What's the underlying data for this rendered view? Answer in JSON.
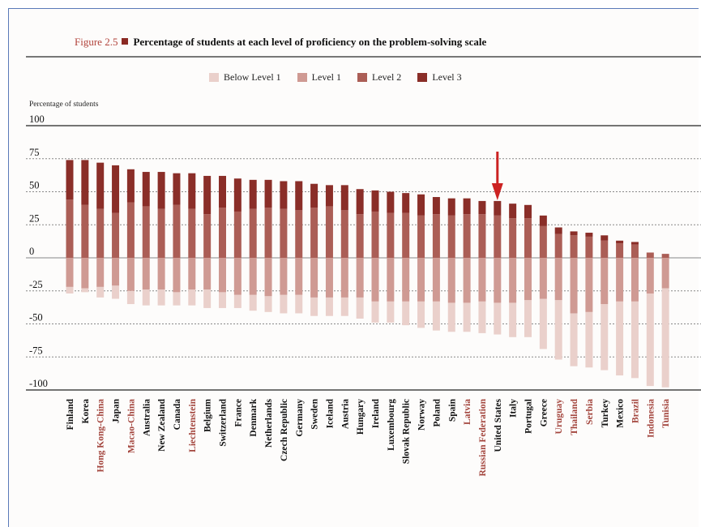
{
  "figure": {
    "number": "Figure 2.5",
    "title": "Percentage of students at each level of proficiency on the problem-solving scale"
  },
  "colors": {
    "below_level_1": "#ead0cb",
    "level_1": "#cf9a93",
    "level_2": "#ab5e56",
    "level_3": "#8a2e28",
    "highlight_label": "#a3453d",
    "arrow": "#cc2222"
  },
  "annotation": {
    "type": "down-arrow",
    "points_to": "United States"
  },
  "chart_data": {
    "type": "bar",
    "stacked": true,
    "diverging": true,
    "title": "Percentage of students at each level of proficiency on the problem-solving scale",
    "ylabel": "Percentage of students",
    "xlabel": "",
    "ylim": [
      -100,
      100
    ],
    "yticks": [
      100,
      75,
      50,
      25,
      0,
      -25,
      -50,
      -75,
      -100
    ],
    "legend": [
      "Below Level 1",
      "Level 1",
      "Level 2",
      "Level 3"
    ],
    "legend_position": "top-center",
    "categories": [
      "Finland",
      "Korea",
      "Hong Kong-China",
      "Japan",
      "Macao-China",
      "Australia",
      "New Zealand",
      "Canada",
      "Liechtenstein",
      "Belgium",
      "Switzerland",
      "France",
      "Denmark",
      "Netherlands",
      "Czech Republic",
      "Germany",
      "Sweden",
      "Iceland",
      "Austria",
      "Hungary",
      "Ireland",
      "Luxembourg",
      "Slovak Republic",
      "Norway",
      "Poland",
      "Spain",
      "Latvia",
      "Russian Federation",
      "United States",
      "Italy",
      "Portugal",
      "Greece",
      "Uruguay",
      "Thailand",
      "Serbia",
      "Turkey",
      "Mexico",
      "Brazil",
      "Indonesia",
      "Tunisia"
    ],
    "highlighted_categories": [
      "Hong Kong-China",
      "Macao-China",
      "Liechtenstein",
      "Latvia",
      "Russian Federation",
      "Uruguay",
      "Thailand",
      "Serbia",
      "Brazil",
      "Indonesia",
      "Tunisia"
    ],
    "series": [
      {
        "name": "Below Level 1",
        "values": [
          -5,
          -3,
          -8,
          -10,
          -10,
          -12,
          -12,
          -10,
          -12,
          -14,
          -12,
          -10,
          -12,
          -12,
          -14,
          -14,
          -14,
          -14,
          -14,
          -16,
          -16,
          -16,
          -18,
          -20,
          -22,
          -22,
          -22,
          -24,
          -24,
          -26,
          -28,
          -38,
          -45,
          -40,
          -42,
          -50,
          -56,
          -58,
          -70,
          -75
        ]
      },
      {
        "name": "Level 1",
        "values": [
          -22,
          -23,
          -22,
          -21,
          -25,
          -24,
          -24,
          -26,
          -24,
          -24,
          -26,
          -28,
          -28,
          -29,
          -28,
          -28,
          -30,
          -30,
          -30,
          -30,
          -33,
          -33,
          -33,
          -33,
          -33,
          -34,
          -34,
          -33,
          -34,
          -34,
          -32,
          -31,
          -32,
          -42,
          -41,
          -35,
          -33,
          -33,
          -27,
          -23
        ]
      },
      {
        "name": "Level 2",
        "values": [
          44,
          40,
          37,
          34,
          42,
          39,
          37,
          40,
          37,
          33,
          38,
          35,
          37,
          38,
          37,
          36,
          38,
          39,
          36,
          33,
          35,
          34,
          34,
          32,
          33,
          32,
          33,
          33,
          32,
          30,
          30,
          24,
          18,
          17,
          16,
          13,
          11,
          10,
          4,
          3
        ]
      },
      {
        "name": "Level 3",
        "values": [
          30,
          34,
          35,
          36,
          25,
          26,
          28,
          24,
          27,
          29,
          24,
          25,
          22,
          21,
          21,
          22,
          18,
          16,
          19,
          19,
          16,
          16,
          15,
          16,
          13,
          13,
          12,
          10,
          11,
          11,
          10,
          8,
          5,
          3,
          3,
          4,
          2,
          2,
          0,
          0
        ]
      }
    ]
  }
}
